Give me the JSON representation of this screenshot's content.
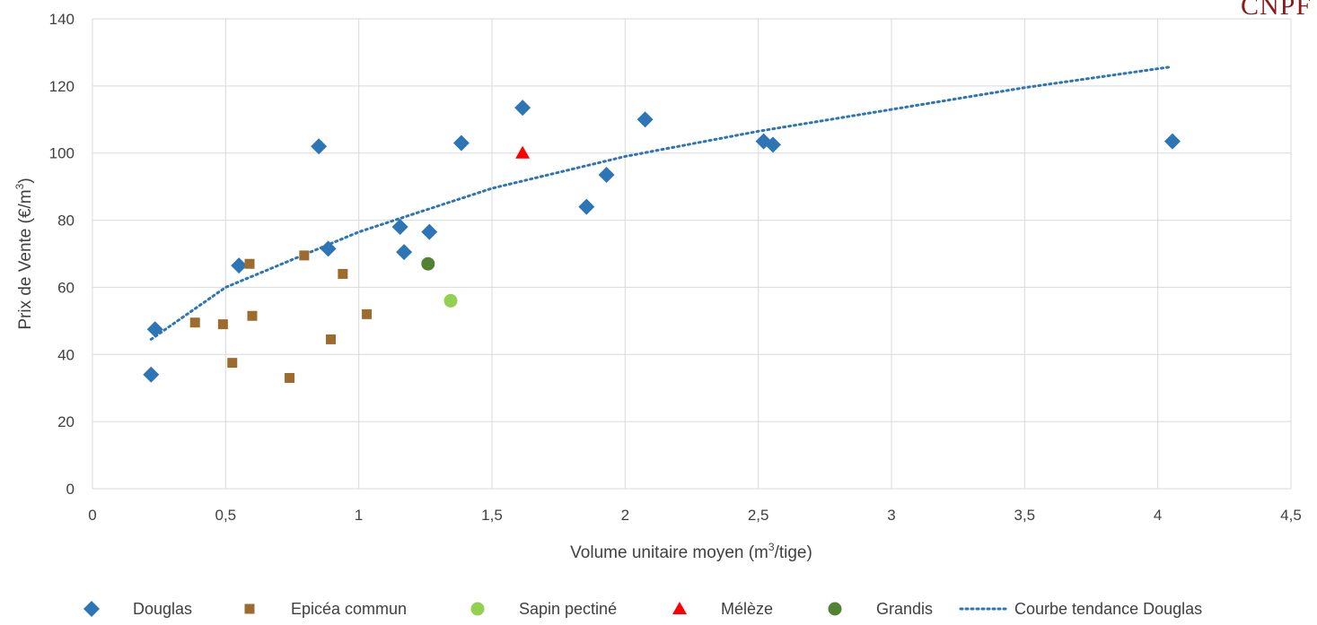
{
  "logo": {
    "text": "CNPF",
    "color": "#8b1a1a"
  },
  "chart_data": {
    "type": "scatter",
    "title": "",
    "xlabel": "Volume unitaire moyen (m",
    "xlabel_sup": "3",
    "xlabel_end": "/tige)",
    "ylabel": "Prix de Vente (€/m",
    "ylabel_sup": "3",
    "ylabel_end": ")",
    "xlim": [
      0,
      4.5
    ],
    "ylim": [
      0,
      140
    ],
    "x_ticks": [
      "0",
      "0,5",
      "1",
      "1,5",
      "2",
      "2,5",
      "3",
      "3,5",
      "4",
      "4,5"
    ],
    "y_ticks": [
      "0",
      "20",
      "40",
      "60",
      "80",
      "100",
      "120",
      "140"
    ],
    "grid": "vertical and horizontal",
    "legend_position": "bottom",
    "series": [
      {
        "name": "Douglas",
        "marker": "diamond",
        "color": "#2e75b6",
        "points": [
          [
            0.22,
            34
          ],
          [
            0.235,
            47.5
          ],
          [
            0.55,
            66.5
          ],
          [
            0.85,
            102
          ],
          [
            0.885,
            71.5
          ],
          [
            1.155,
            78
          ],
          [
            1.17,
            70.5
          ],
          [
            1.265,
            76.5
          ],
          [
            1.385,
            103
          ],
          [
            1.615,
            113.5
          ],
          [
            1.855,
            84
          ],
          [
            1.93,
            93.5
          ],
          [
            2.075,
            110
          ],
          [
            2.52,
            103.5
          ],
          [
            2.555,
            102.5
          ],
          [
            4.055,
            103.5
          ]
        ]
      },
      {
        "name": "Epicéa commun",
        "marker": "square",
        "color": "#9e6b2f",
        "points": [
          [
            0.385,
            49.5
          ],
          [
            0.49,
            49
          ],
          [
            0.525,
            37.5
          ],
          [
            0.59,
            67
          ],
          [
            0.6,
            51.5
          ],
          [
            0.74,
            33
          ],
          [
            0.795,
            69.5
          ],
          [
            0.895,
            44.5
          ],
          [
            0.94,
            64
          ],
          [
            1.03,
            52
          ]
        ]
      },
      {
        "name": "Sapin pectiné",
        "marker": "circle",
        "color": "#92d050",
        "points": [
          [
            1.345,
            56
          ]
        ]
      },
      {
        "name": "Mélèze",
        "marker": "triangle",
        "color": "#ff0000",
        "points": [
          [
            1.615,
            100
          ]
        ]
      },
      {
        "name": "Grandis",
        "marker": "circle",
        "color": "#548235",
        "points": [
          [
            1.26,
            67
          ]
        ]
      },
      {
        "name": "Courbe tendance Douglas",
        "marker": "dotted-line",
        "color": "#2e75b6",
        "trend": {
          "type": "power",
          "x_from": 0.22,
          "x_to": 4.05,
          "points": [
            [
              0.22,
              44.5
            ],
            [
              0.5,
              60
            ],
            [
              1,
              76.5
            ],
            [
              1.5,
              89.5
            ],
            [
              2,
              99
            ],
            [
              2.5,
              106.5
            ],
            [
              3,
              113
            ],
            [
              3.5,
              119.5
            ],
            [
              4.05,
              125.7
            ]
          ]
        }
      }
    ]
  }
}
